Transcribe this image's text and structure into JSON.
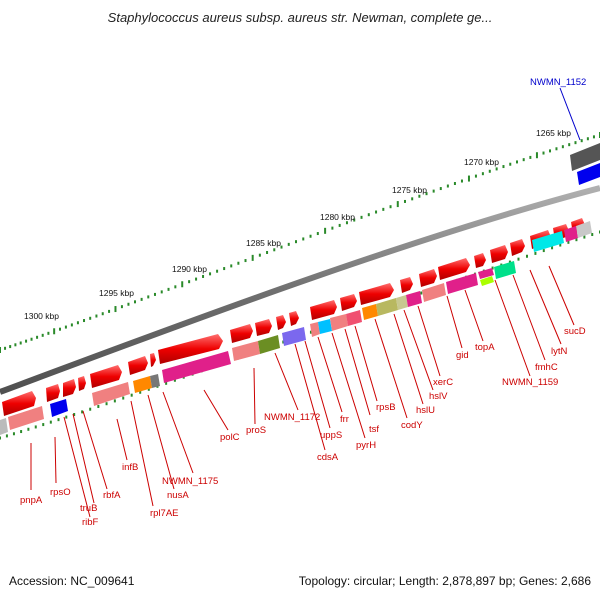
{
  "title": "Staphylococcus aureus subsp. aureus str. Newman, complete ge...",
  "footer": {
    "accession": "Accession: NC_009641",
    "summary": "Topology: circular; Length: 2,878,897 bp; Genes: 2,686"
  },
  "colors": {
    "gene_forward": "#ee0000",
    "backbone": "#808080",
    "label": "#cc0000",
    "highlight": "#0000cc",
    "tick_dots": "#2a8a2a"
  },
  "scale_labels": [
    "1265 kbp",
    "1270 kbp",
    "1275 kbp",
    "1280 kbp",
    "1285 kbp",
    "1290 kbp",
    "1295 kbp",
    "1300 kbp"
  ],
  "gene_labels": [
    "NWMN_1152",
    "sucD",
    "lytN",
    "fmhC",
    "NWMN_1159",
    "topA",
    "gid",
    "xerC",
    "hslV",
    "hslU",
    "codY",
    "rpsB",
    "tsf",
    "pyrH",
    "frr",
    "uppS",
    "cdsA",
    "NWMN_1172",
    "proS",
    "polC",
    "NWMN_1175",
    "nusA",
    "rpl7AE",
    "infB",
    "rbfA",
    "truB",
    "ribF",
    "rpsO",
    "pnpA"
  ]
}
